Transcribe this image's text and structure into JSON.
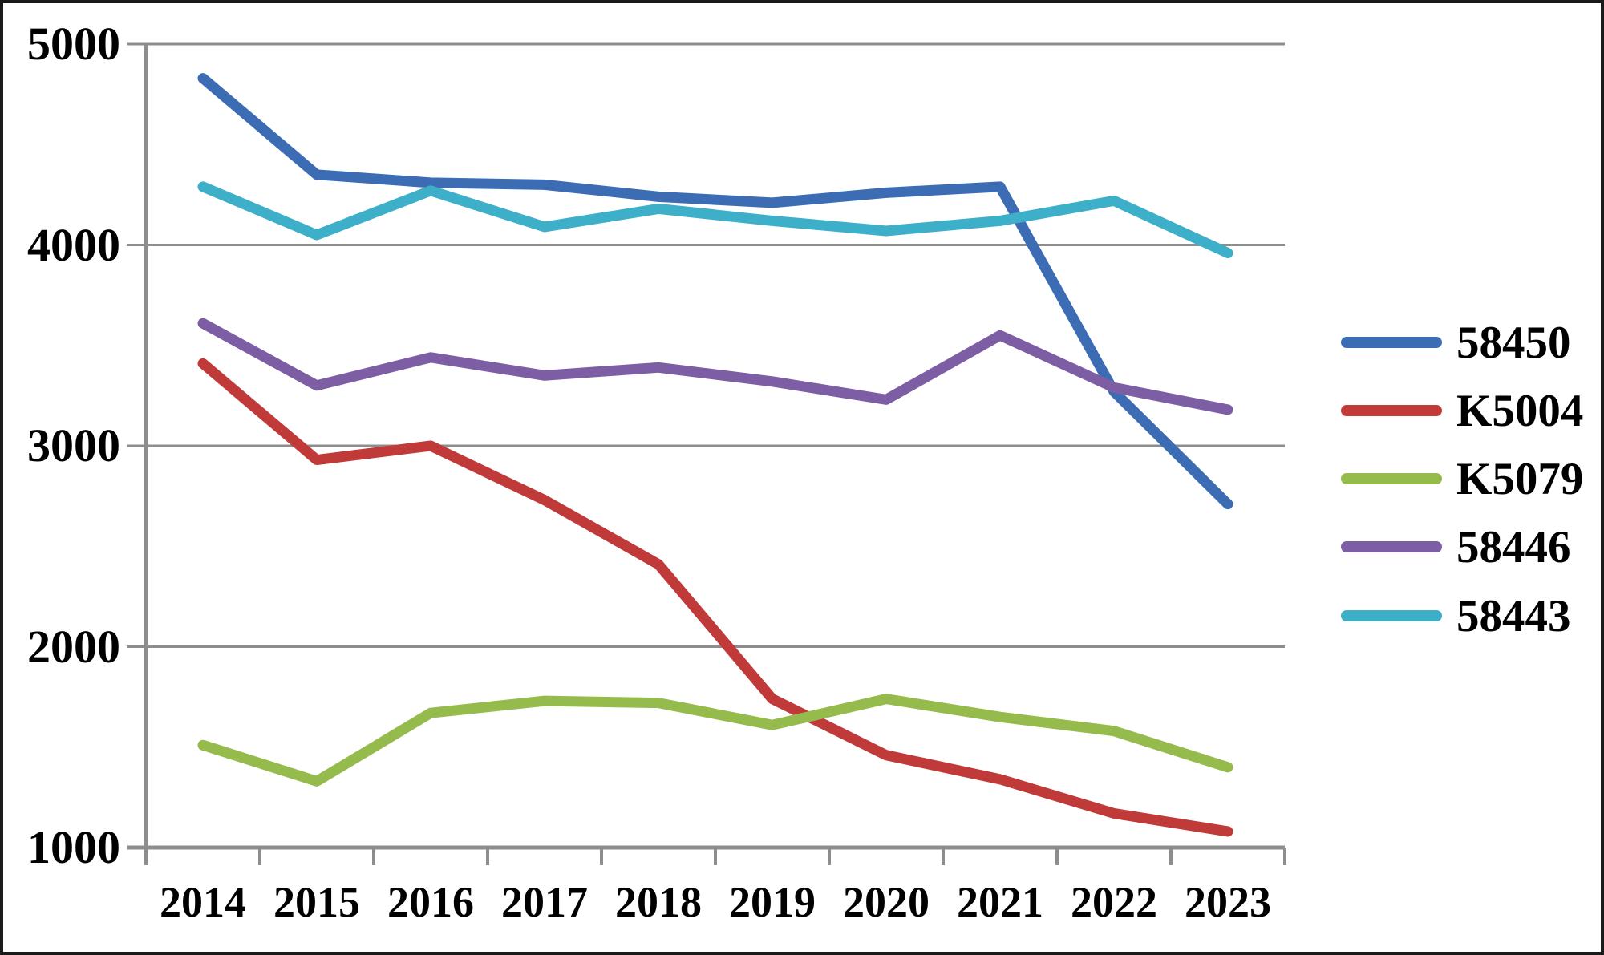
{
  "chart_data": {
    "type": "line",
    "title": "",
    "xlabel": "",
    "ylabel": "",
    "categories": [
      "2014",
      "2015",
      "2016",
      "2017",
      "2018",
      "2019",
      "2020",
      "2021",
      "2022",
      "2023"
    ],
    "series": [
      {
        "name": "58450",
        "color": "#3b6cb4",
        "values": [
          4830,
          4350,
          4310,
          4300,
          4240,
          4210,
          4260,
          4290,
          3270,
          2710
        ]
      },
      {
        "name": "K5004",
        "color": "#c03a39",
        "values": [
          3410,
          2930,
          3000,
          2730,
          2410,
          1740,
          1460,
          1340,
          1170,
          1080
        ]
      },
      {
        "name": "K5079",
        "color": "#95bb4d",
        "values": [
          1510,
          1330,
          1670,
          1730,
          1720,
          1610,
          1740,
          1650,
          1580,
          1400
        ]
      },
      {
        "name": "58446",
        "color": "#7d5ea5",
        "values": [
          3610,
          3300,
          3440,
          3350,
          3390,
          3320,
          3230,
          3550,
          3290,
          3180
        ]
      },
      {
        "name": "58443",
        "color": "#3dafc9",
        "values": [
          4290,
          4050,
          4270,
          4090,
          4180,
          4120,
          4070,
          4120,
          4220,
          3960
        ]
      }
    ],
    "y_ticks": [
      5000,
      4000,
      3000,
      2000,
      1000
    ],
    "ylim": [
      1000,
      5000
    ],
    "grid": "horizontal",
    "legend_position": "right",
    "legend_order": [
      "58450",
      "K5004",
      "K5079",
      "58446",
      "58443"
    ],
    "axis_color": "#8d8d8d",
    "gridline_color": "#8d8d8d",
    "text_color": "#000000"
  }
}
